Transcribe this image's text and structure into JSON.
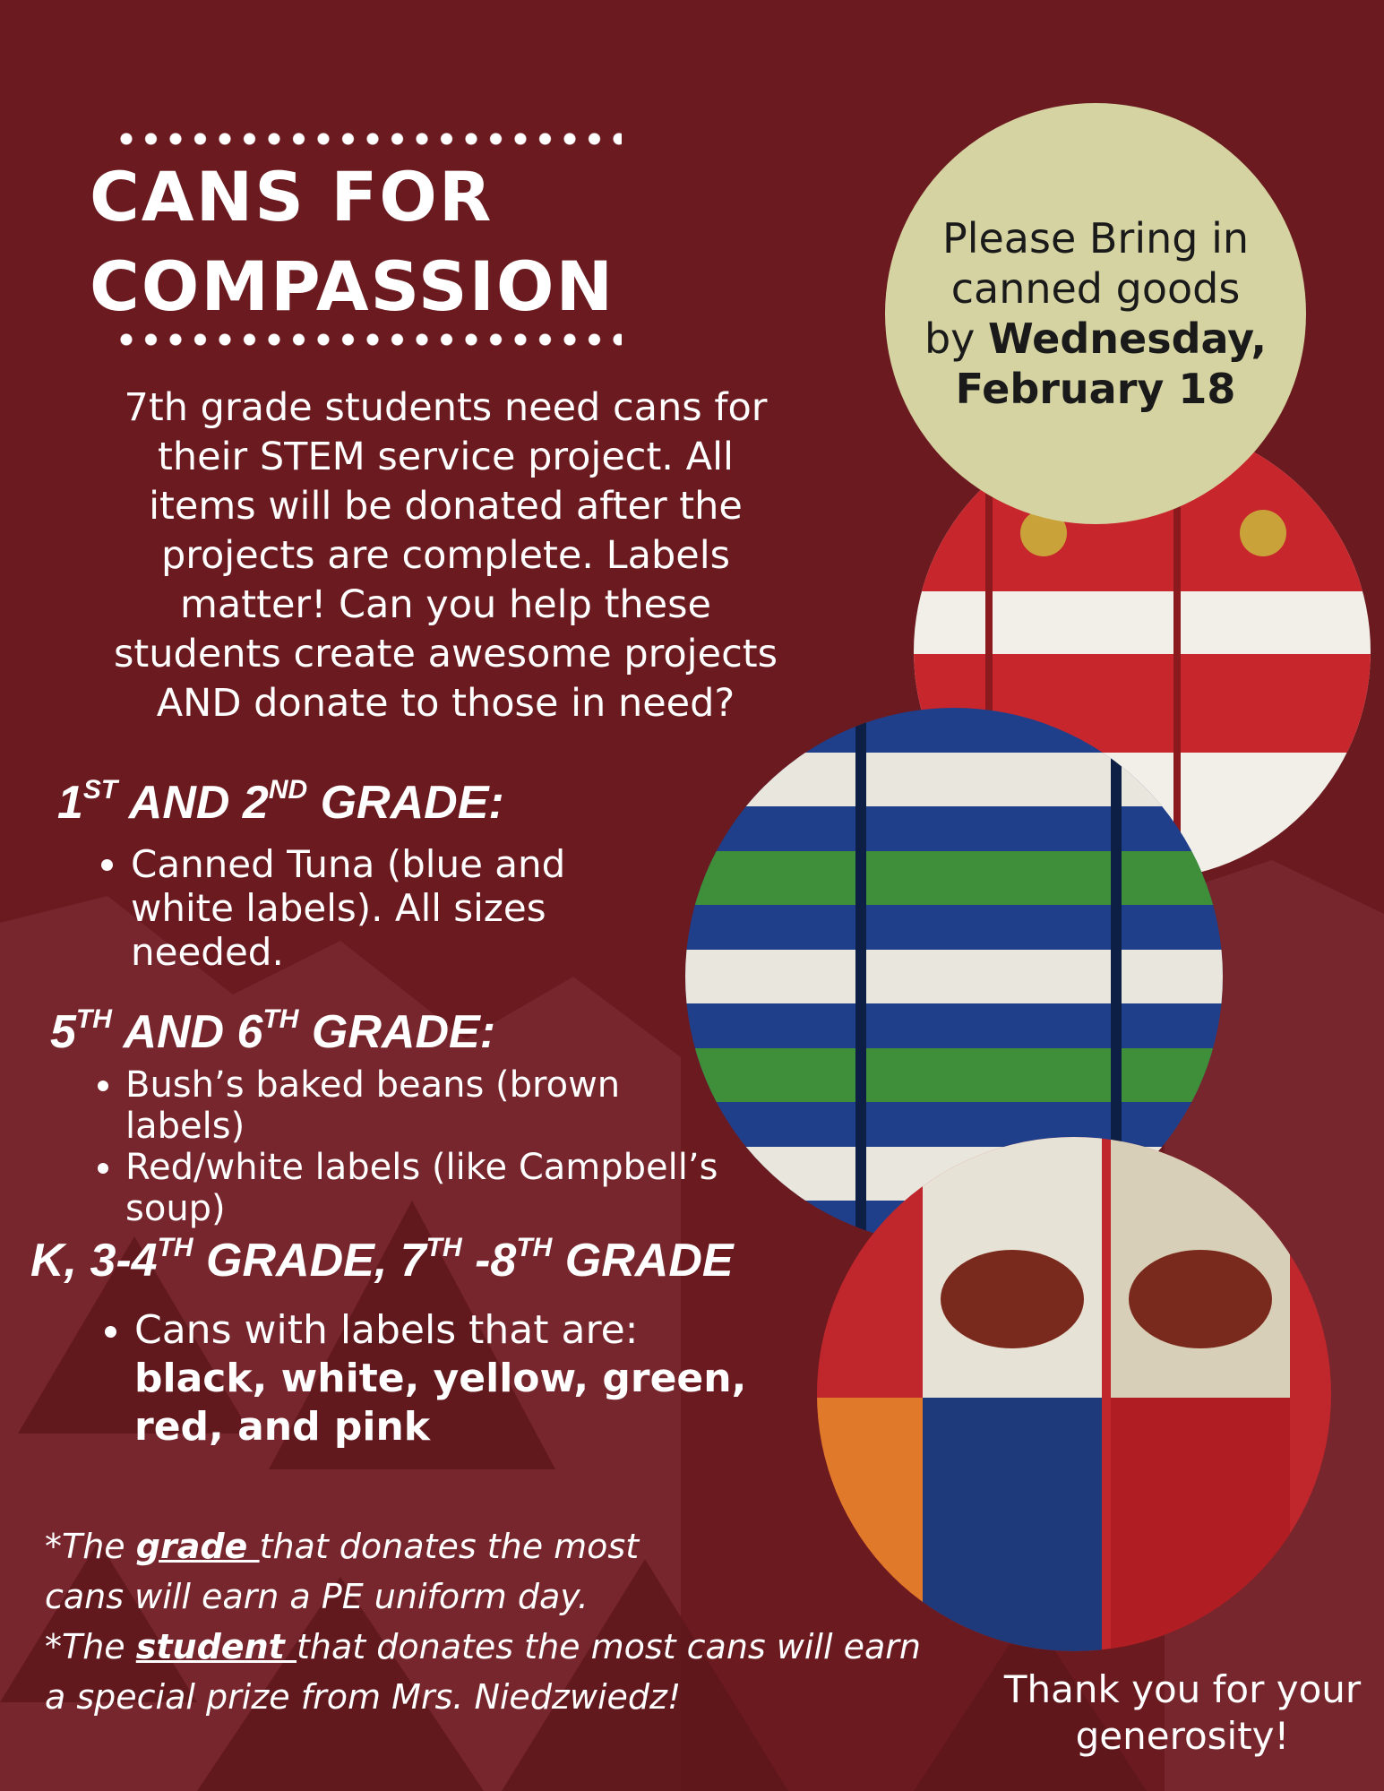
{
  "title": [
    "CANS FOR",
    "COMPASSION"
  ],
  "badge": {
    "lines": [
      "Please Bring in",
      "canned goods"
    ],
    "by": "by",
    "day": "Wednesday,",
    "date": "February 18"
  },
  "intro": [
    "7th grade students need cans for",
    "their STEM service project. All",
    "items will be donated after the",
    "projects are complete. Labels",
    "matter! Can you help these",
    "students create awesome projects",
    "AND donate to those in need?"
  ],
  "sections": [
    {
      "heading": [
        {
          "text": "1"
        },
        {
          "sup": "ST"
        },
        {
          "text": " AND 2"
        },
        {
          "sup": "ND"
        },
        {
          "text": " GRADE:"
        }
      ],
      "items": [
        {
          "text": "Canned Tuna (blue and white labels). All sizes needed."
        }
      ]
    },
    {
      "heading": [
        {
          "text": "5"
        },
        {
          "sup": "TH"
        },
        {
          "text": " AND 6"
        },
        {
          "sup": "TH"
        },
        {
          "text": " GRADE:"
        }
      ],
      "items": [
        {
          "text": "Bush’s baked beans (brown labels)"
        },
        {
          "text": "Red/white labels (like Campbell’s soup)"
        }
      ]
    },
    {
      "heading": [
        {
          "text": "K, 3-4"
        },
        {
          "sup": "TH"
        },
        {
          "text": " GRADE, 7"
        },
        {
          "sup": "TH"
        },
        {
          "text": " -8"
        },
        {
          "sup": "TH"
        },
        {
          "text": " GRADE"
        }
      ],
      "items": [
        {
          "text": "Cans with labels that are:",
          "bold": "black, white, yellow, green, red, and pink"
        }
      ]
    }
  ],
  "footnotes": [
    {
      "pre": "*The ",
      "em": "grade ",
      "post": "that donates the most cans will earn a PE uniform day."
    },
    {
      "pre": "*The ",
      "em": "student ",
      "post": "that donates the most cans will earn a special prize from Mrs. Niedzwiedz!"
    }
  ],
  "thanks": "Thank you for your generosity!"
}
